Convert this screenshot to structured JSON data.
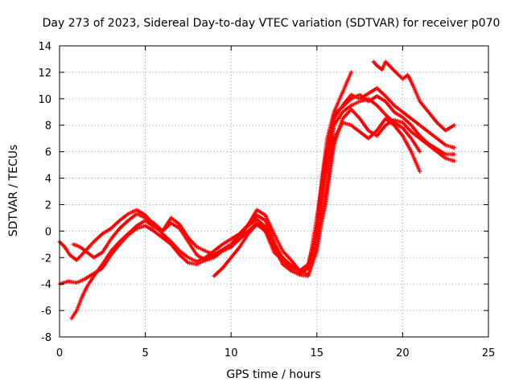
{
  "chart_data": {
    "type": "scatter",
    "title": "Day 273 of 2023, Sidereal Day-to-day VTEC variation (SDTVAR) for receiver p070",
    "xlabel": "GPS time / hours",
    "ylabel": "SDTVAR / TECUs",
    "xlim": [
      0,
      25
    ],
    "ylim": [
      -8,
      14
    ],
    "x_ticks": [
      0,
      5,
      10,
      15,
      20,
      25
    ],
    "y_ticks": [
      -8,
      -6,
      -4,
      -2,
      0,
      2,
      4,
      6,
      8,
      10,
      12,
      14
    ],
    "grid": true,
    "marker": "+",
    "color": "#ff0000",
    "series": [
      {
        "x": [
          0.0,
          0.3,
          0.6,
          1.0,
          1.5,
          2.0,
          2.5,
          3.0,
          3.5,
          4.0,
          4.5,
          5.0,
          5.5,
          6.0,
          6.5,
          7.0,
          7.5,
          8.0,
          8.5,
          9.0,
          9.5,
          10.0,
          10.5,
          11.0,
          11.5,
          12.0,
          12.5,
          13.0,
          13.5,
          14.0,
          14.5,
          15.0,
          15.3,
          15.6,
          16.0,
          16.5,
          17.0
        ],
        "y": [
          -0.8,
          -1.2,
          -1.8,
          -2.2,
          -1.5,
          -0.8,
          -0.2,
          0.2,
          0.8,
          1.3,
          1.6,
          1.2,
          0.5,
          -0.2,
          -0.8,
          -1.5,
          -2.0,
          -2.3,
          -2.0,
          -1.5,
          -1.0,
          -0.6,
          -0.2,
          0.4,
          0.9,
          0.3,
          -1.0,
          -2.0,
          -2.6,
          -3.0,
          -2.5,
          0.0,
          4.0,
          7.0,
          9.0,
          10.5,
          12.0
        ]
      },
      {
        "x": [
          0.0,
          0.5,
          1.0,
          1.5,
          2.0,
          2.5,
          3.0,
          3.5,
          4.0,
          4.5,
          5.0,
          5.5,
          6.0,
          6.5,
          7.0,
          7.5,
          8.0,
          8.5,
          9.0,
          9.5,
          10.0,
          10.5,
          11.0,
          11.5,
          12.0,
          12.5,
          13.0,
          13.5,
          14.0,
          14.5,
          15.0,
          15.5,
          16.0,
          16.5,
          17.0,
          17.5,
          18.0,
          18.5,
          19.0,
          19.5,
          20.0,
          20.5,
          21.0,
          21.5,
          22.0,
          22.5,
          23.0
        ],
        "y": [
          -4.0,
          -3.8,
          -3.9,
          -3.6,
          -3.2,
          -2.8,
          -1.8,
          -1.0,
          -0.3,
          0.2,
          0.4,
          0.0,
          -0.5,
          -1.0,
          -1.8,
          -2.4,
          -2.5,
          -2.2,
          -1.8,
          -1.5,
          -1.2,
          -0.5,
          0.5,
          1.2,
          0.8,
          -0.8,
          -2.2,
          -3.0,
          -3.3,
          -3.4,
          -1.0,
          2.0,
          6.5,
          8.5,
          9.2,
          8.5,
          7.6,
          7.2,
          8.0,
          8.4,
          8.2,
          7.5,
          7.0,
          6.5,
          6.0,
          5.5,
          5.3
        ]
      },
      {
        "x": [
          0.7,
          1.0,
          1.3,
          1.6,
          2.0,
          2.5,
          3.0,
          3.5,
          4.0,
          4.5,
          5.0,
          5.5,
          6.0,
          6.5,
          7.0,
          7.5,
          8.0,
          8.5,
          9.0,
          9.5,
          10.0,
          10.5,
          11.0,
          11.5,
          12.0,
          12.5,
          13.0,
          13.5,
          14.0,
          14.5,
          15.0,
          15.5,
          16.0,
          16.5,
          17.0,
          17.5,
          18.0,
          18.5,
          19.0,
          19.5,
          20.0,
          20.5,
          21.0,
          21.5,
          22.0,
          22.5,
          23.0
        ],
        "y": [
          -6.6,
          -6.0,
          -5.0,
          -4.2,
          -3.4,
          -2.5,
          -1.5,
          -0.8,
          -0.2,
          0.4,
          0.8,
          0.3,
          0.0,
          0.6,
          0.2,
          -0.8,
          -1.8,
          -2.2,
          -2.0,
          -1.5,
          -1.2,
          -0.6,
          0.0,
          0.6,
          0.0,
          -1.2,
          -2.5,
          -3.0,
          -3.2,
          -2.8,
          1.0,
          5.0,
          8.5,
          9.5,
          10.3,
          10.0,
          10.4,
          10.8,
          10.2,
          9.5,
          9.0,
          8.5,
          8.0,
          7.5,
          7.0,
          6.5,
          6.3
        ]
      },
      {
        "x": [
          0.8,
          1.2,
          1.6,
          2.0,
          2.5,
          3.0,
          3.5,
          4.0,
          4.5,
          5.0,
          5.5,
          6.0,
          6.5,
          7.0,
          7.5,
          8.0,
          8.5,
          9.0,
          9.5,
          10.0,
          10.5,
          11.0,
          11.5,
          12.0,
          12.5,
          13.0,
          13.5,
          14.0,
          14.5,
          15.0,
          15.5,
          16.0,
          16.5,
          17.0,
          17.5,
          18.0,
          18.5,
          19.0,
          19.5,
          20.0,
          20.5,
          21.0
        ],
        "y": [
          -1.0,
          -1.2,
          -1.6,
          -2.0,
          -1.6,
          -0.6,
          0.2,
          0.8,
          1.3,
          1.0,
          0.6,
          0.0,
          1.0,
          0.5,
          -0.5,
          -1.2,
          -1.5,
          -1.8,
          -1.4,
          -1.0,
          -0.2,
          0.5,
          1.6,
          1.2,
          -0.2,
          -1.5,
          -2.2,
          -3.0,
          -3.3,
          -1.5,
          2.5,
          7.0,
          8.2,
          8.0,
          7.5,
          7.0,
          7.6,
          8.5,
          8.0,
          7.2,
          6.0,
          4.5
        ]
      },
      {
        "x": [
          9.0,
          9.5,
          10.0,
          10.5,
          11.0,
          11.5,
          12.0,
          12.5,
          13.0,
          13.5,
          14.0,
          14.5,
          15.0,
          15.5,
          16.0,
          16.5,
          17.0,
          17.5,
          18.0,
          18.5,
          19.0,
          19.5,
          20.0,
          20.5,
          21.0
        ],
        "y": [
          -3.4,
          -2.8,
          -2.0,
          -1.2,
          -0.2,
          0.5,
          0.0,
          -1.6,
          -2.2,
          -2.8,
          -3.0,
          -2.6,
          -0.5,
          4.0,
          8.0,
          9.0,
          9.5,
          9.8,
          10.0,
          9.5,
          8.8,
          8.2,
          7.8,
          7.0,
          6.0
        ]
      },
      {
        "x": [
          18.3,
          18.5,
          18.8,
          19.0,
          19.3,
          19.6,
          20.0,
          20.3,
          20.6,
          21.0,
          21.5,
          22.0,
          22.5,
          23.0
        ],
        "y": [
          12.8,
          12.5,
          12.2,
          12.8,
          12.4,
          12.0,
          11.5,
          11.8,
          11.0,
          9.8,
          9.0,
          8.2,
          7.6,
          8.0
        ]
      },
      {
        "x": [
          15.0,
          15.5,
          16.0,
          16.5,
          17.0,
          17.5,
          18.0,
          18.5,
          19.0,
          19.5,
          20.0,
          20.5,
          21.0,
          21.5,
          22.0,
          22.5,
          23.0
        ],
        "y": [
          1.0,
          5.5,
          8.8,
          9.4,
          10.0,
          10.3,
          9.8,
          10.2,
          9.8,
          9.0,
          8.6,
          8.0,
          7.2,
          6.6,
          6.2,
          5.8,
          5.8
        ]
      }
    ]
  }
}
